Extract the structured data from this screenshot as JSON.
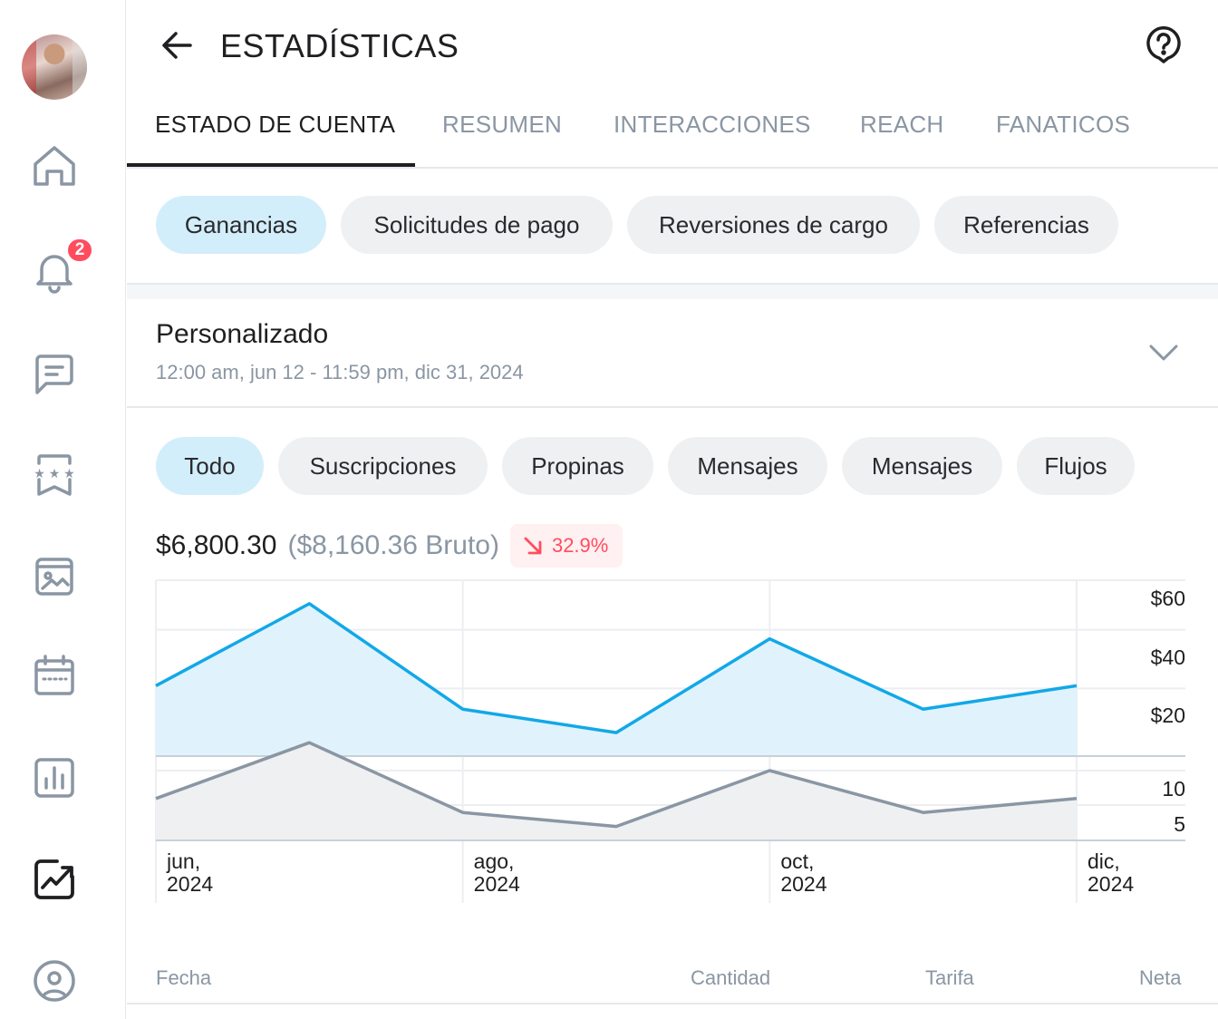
{
  "sidebar": {
    "notifications_count": "2",
    "items": [
      {
        "icon": "home-icon"
      },
      {
        "icon": "bell-icon"
      },
      {
        "icon": "messages-icon"
      },
      {
        "icon": "bookmark-stars-icon"
      },
      {
        "icon": "vault-icon"
      },
      {
        "icon": "calendar-icon"
      },
      {
        "icon": "bar-chart-icon"
      },
      {
        "icon": "statistics-icon",
        "active": true
      },
      {
        "icon": "profile-icon"
      }
    ]
  },
  "header": {
    "title": "ESTADÍSTICAS"
  },
  "tabs": [
    {
      "label": "ESTADO DE CUENTA",
      "active": true
    },
    {
      "label": "RESUMEN"
    },
    {
      "label": "INTERACCIONES"
    },
    {
      "label": "REACH"
    },
    {
      "label": "FANATICOS"
    }
  ],
  "subtabs": [
    {
      "label": "Ganancias",
      "active": true
    },
    {
      "label": "Solicitudes de pago"
    },
    {
      "label": "Reversiones de cargo"
    },
    {
      "label": "Referencias"
    }
  ],
  "period": {
    "title": "Personalizado",
    "range": "12:00 am, jun 12 - 11:59 pm, dic 31, 2024"
  },
  "filters": [
    {
      "label": "Todo",
      "active": true
    },
    {
      "label": "Suscripciones"
    },
    {
      "label": "Propinas"
    },
    {
      "label": "Mensajes"
    },
    {
      "label": "Mensajes"
    },
    {
      "label": "Flujos"
    }
  ],
  "totals": {
    "net": "$6,800.30",
    "gross": "($8,160.36 Bruto)",
    "change": "32.9%",
    "change_color": "#ff4d5e"
  },
  "chart_data": [
    {
      "type": "area",
      "x": [
        "jun, 2024",
        "",
        "ago, 2024",
        "",
        "oct, 2024",
        "",
        "dic, 2024"
      ],
      "x_tick_labels": [
        "jun,\n2024",
        "ago,\n2024",
        "oct,\n2024",
        "dic,\n2024"
      ],
      "values": [
        24,
        52,
        16,
        8,
        40,
        16,
        24
      ],
      "y_tick_labels": [
        "$60",
        "$40",
        "$20"
      ],
      "ylim": [
        0,
        60
      ],
      "color": "#12a8e8",
      "grid": true
    },
    {
      "type": "area",
      "values": [
        6,
        14,
        4,
        2,
        10,
        4,
        6
      ],
      "y_tick_labels": [
        "10",
        "5"
      ],
      "ylim": [
        0,
        10
      ],
      "color": "#8a96a3",
      "grid": true
    }
  ],
  "table": {
    "columns": [
      "Fecha",
      "Cantidad",
      "Tarifa",
      "Neta"
    ]
  }
}
